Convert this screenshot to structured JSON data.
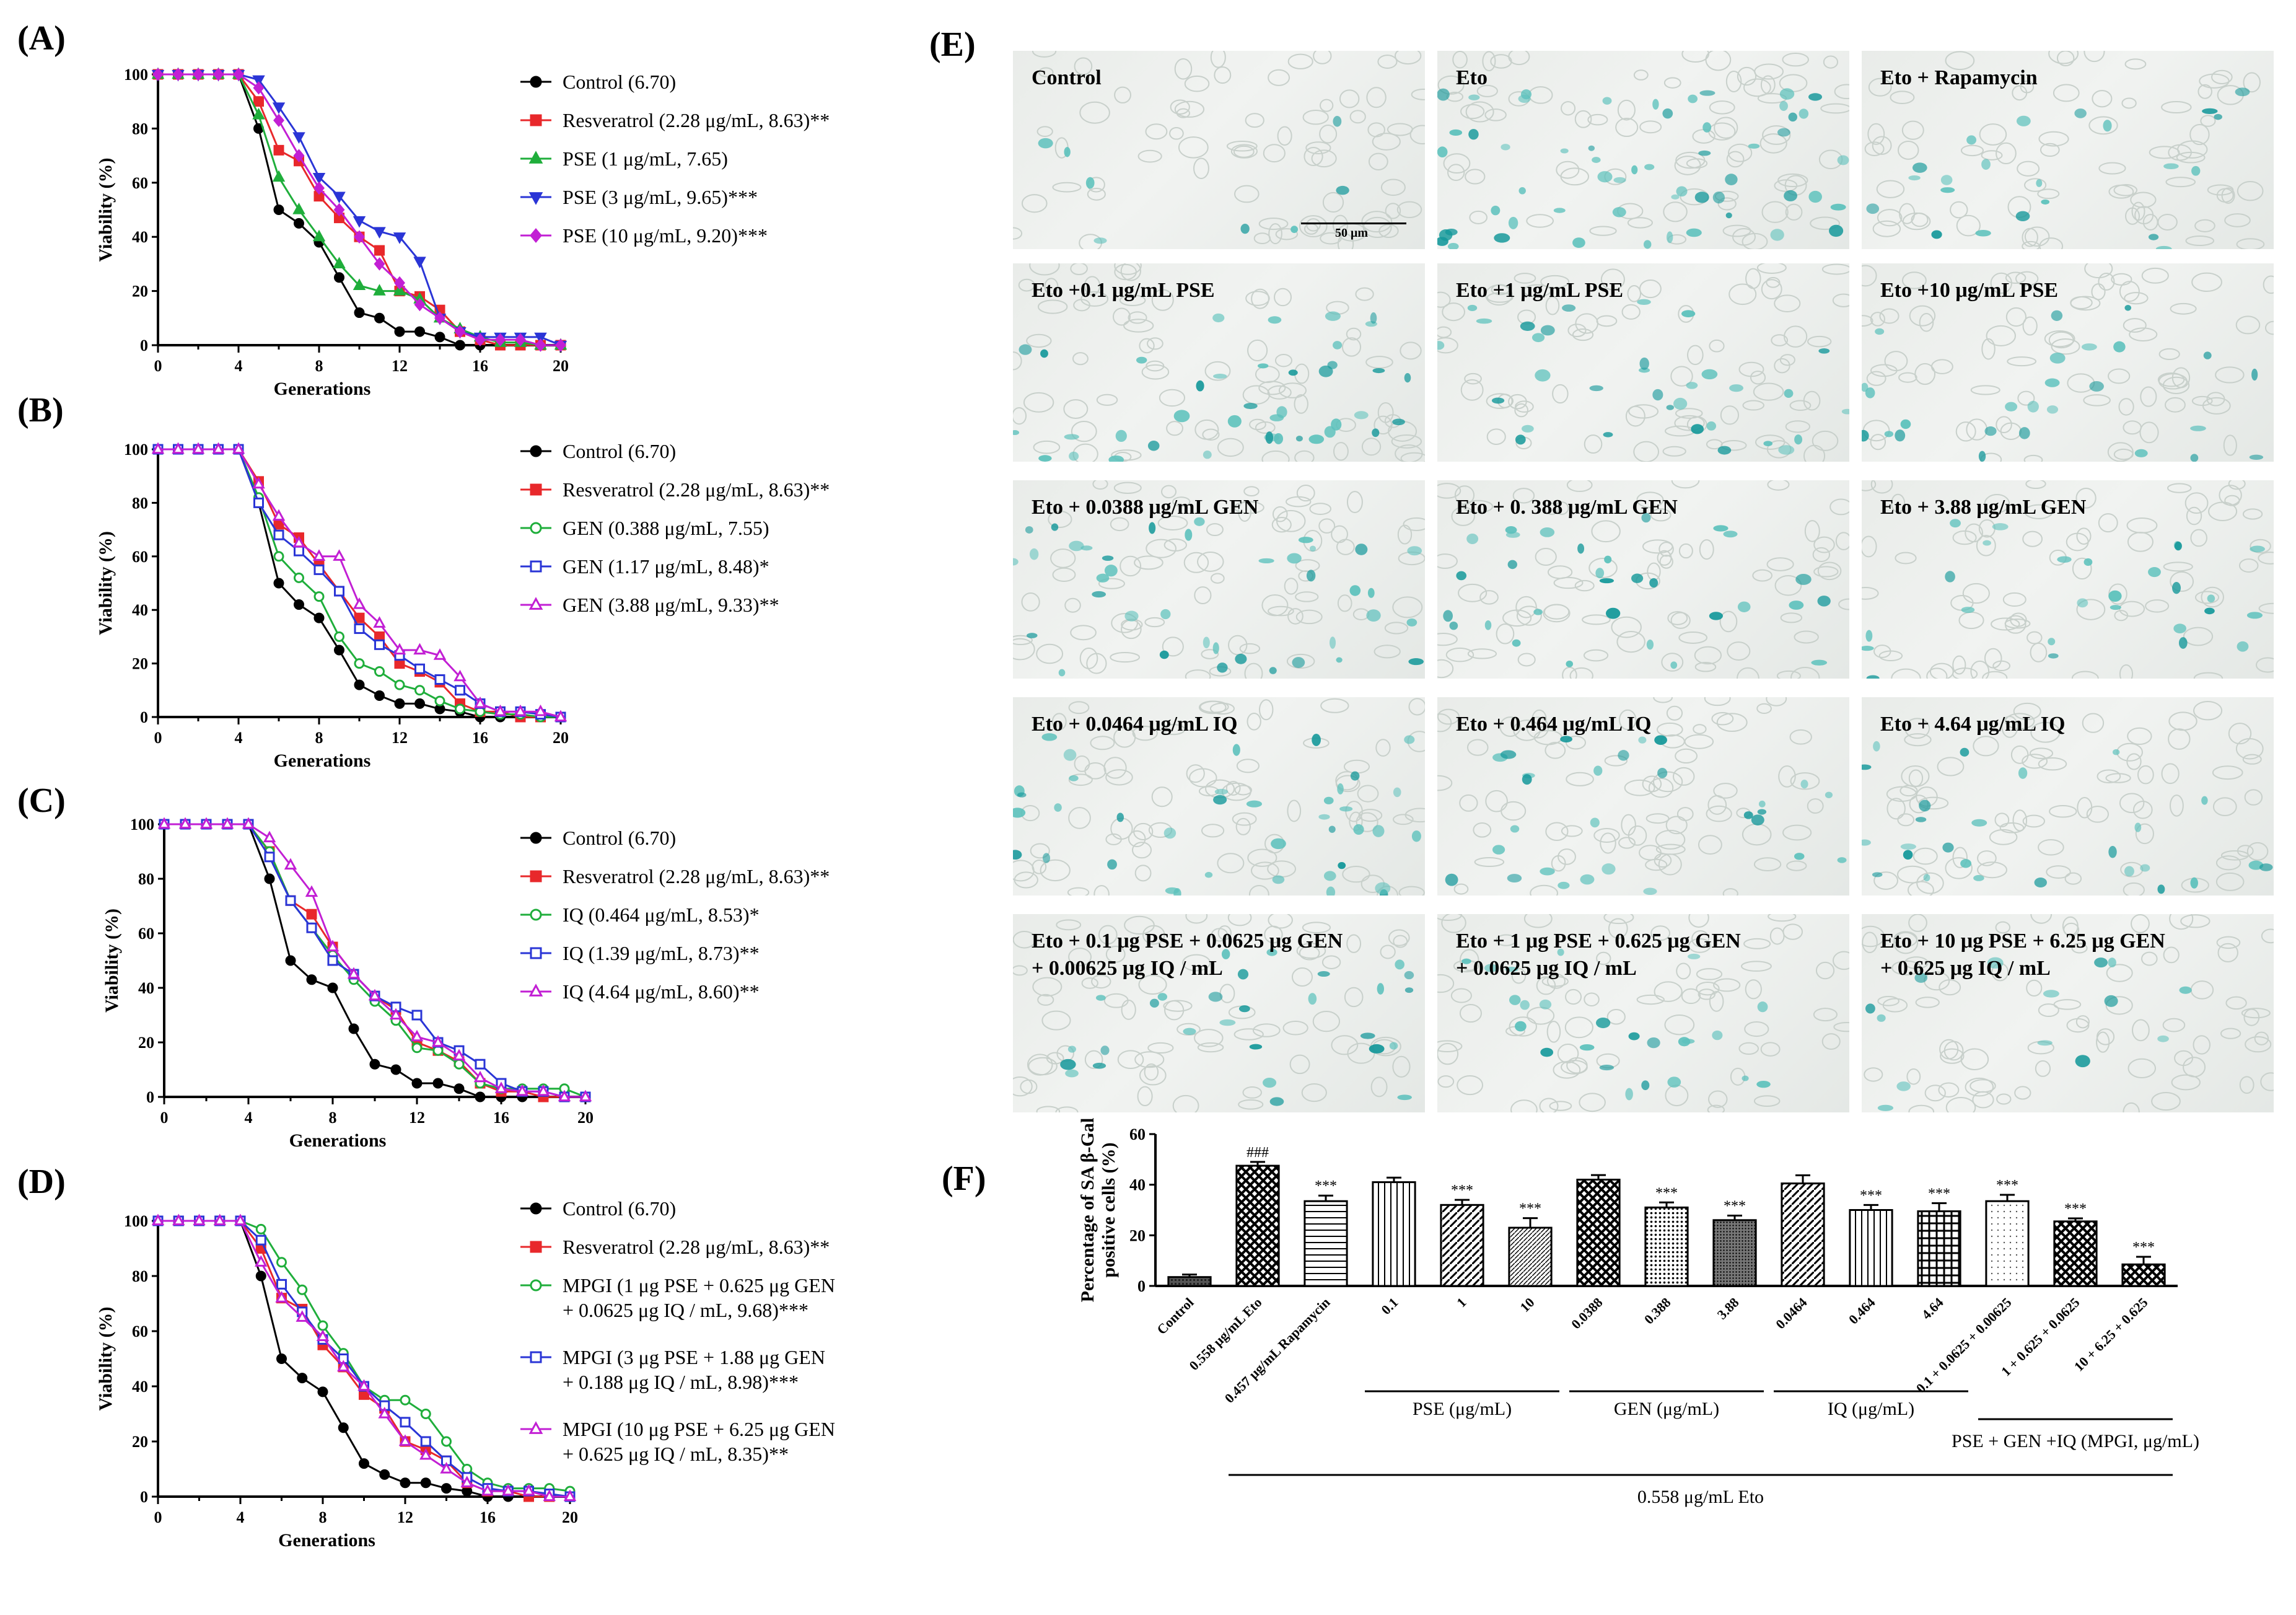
{
  "panels": {
    "A": {
      "label": "(A)",
      "ylabel": "Viability (%)",
      "xlabel": "Generations",
      "xticks": [
        "0",
        "4",
        "8",
        "12",
        "16",
        "20"
      ],
      "yticks": [
        "0",
        "20",
        "40",
        "60",
        "80",
        "100"
      ],
      "xmax": 20,
      "series": [
        {
          "name": "Control (6.70)",
          "color": "#000000",
          "marker": "circle-filled",
          "values": [
            100,
            100,
            100,
            100,
            100,
            80,
            50,
            45,
            38,
            25,
            12,
            10,
            5,
            5,
            3,
            0,
            0,
            0,
            0,
            0,
            0
          ]
        },
        {
          "name": "Resveratrol (2.28 μg/mL, 8.63)**",
          "color": "#e8282b",
          "marker": "square-filled",
          "values": [
            100,
            100,
            100,
            100,
            100,
            90,
            72,
            68,
            55,
            47,
            40,
            35,
            20,
            18,
            13,
            5,
            2,
            0,
            0,
            0,
            0
          ]
        },
        {
          "name": "PSE (1 μg/mL, 7.65)",
          "color": "#1fae3b",
          "marker": "triangle-up-filled",
          "values": [
            100,
            100,
            100,
            100,
            100,
            85,
            62,
            50,
            40,
            30,
            22,
            20,
            20,
            17,
            10,
            6,
            3,
            1,
            1,
            0,
            0
          ]
        },
        {
          "name": "PSE (3 μg/mL, 9.65)***",
          "color": "#2a35d6",
          "marker": "triangle-down-filled",
          "values": [
            100,
            100,
            100,
            100,
            100,
            98,
            88,
            77,
            62,
            55,
            46,
            42,
            40,
            31,
            10,
            5,
            3,
            3,
            3,
            3,
            0
          ]
        },
        {
          "name": "PSE (10 μg/mL, 9.20)***",
          "color": "#c21fd4",
          "marker": "diamond-filled",
          "values": [
            100,
            100,
            100,
            100,
            100,
            95,
            83,
            70,
            58,
            50,
            40,
            30,
            23,
            15,
            10,
            5,
            2,
            2,
            2,
            0,
            0
          ]
        }
      ]
    },
    "B": {
      "label": "(B)",
      "ylabel": "Viability (%)",
      "xlabel": "Generations",
      "xticks": [
        "0",
        "4",
        "8",
        "12",
        "16",
        "20"
      ],
      "yticks": [
        "0",
        "20",
        "40",
        "60",
        "80",
        "100"
      ],
      "xmax": 20,
      "series": [
        {
          "name": "Control (6.70)",
          "color": "#000000",
          "marker": "circle-filled",
          "values": [
            100,
            100,
            100,
            100,
            100,
            80,
            50,
            42,
            37,
            25,
            12,
            8,
            5,
            5,
            3,
            2,
            0,
            0,
            0,
            0,
            0
          ]
        },
        {
          "name": "Resveratrol (2.28 μg/mL, 8.63)**",
          "color": "#e8282b",
          "marker": "square-filled",
          "values": [
            100,
            100,
            100,
            100,
            100,
            88,
            72,
            67,
            57,
            47,
            37,
            30,
            20,
            17,
            13,
            5,
            2,
            2,
            0,
            0,
            0
          ]
        },
        {
          "name": "GEN (0.388 μg/mL, 7.55)",
          "color": "#1fae3b",
          "marker": "circle-open",
          "values": [
            100,
            100,
            100,
            100,
            100,
            82,
            60,
            52,
            45,
            30,
            20,
            17,
            12,
            10,
            6,
            3,
            2,
            1,
            1,
            0,
            0
          ]
        },
        {
          "name": "GEN (1.17 μg/mL, 8.48)*",
          "color": "#2a35d6",
          "marker": "square-open",
          "values": [
            100,
            100,
            100,
            100,
            100,
            80,
            68,
            62,
            55,
            47,
            33,
            27,
            23,
            18,
            14,
            10,
            5,
            2,
            2,
            1,
            0
          ]
        },
        {
          "name": "GEN (3.88 μg/mL, 9.33)**",
          "color": "#c21fd4",
          "marker": "triangle-up-open",
          "values": [
            100,
            100,
            100,
            100,
            100,
            87,
            75,
            65,
            60,
            60,
            42,
            35,
            25,
            25,
            23,
            15,
            5,
            2,
            2,
            2,
            0
          ]
        }
      ]
    },
    "C": {
      "label": "(C)",
      "ylabel": "Viability (%)",
      "xlabel": "Generations",
      "xticks": [
        "0",
        "4",
        "8",
        "12",
        "16",
        "20"
      ],
      "yticks": [
        "0",
        "20",
        "40",
        "60",
        "80",
        "100"
      ],
      "xmax": 20,
      "series": [
        {
          "name": "Control (6.70)",
          "color": "#000000",
          "marker": "circle-filled",
          "values": [
            100,
            100,
            100,
            100,
            100,
            80,
            50,
            43,
            40,
            25,
            12,
            10,
            5,
            5,
            3,
            0,
            0,
            0,
            0,
            0,
            0
          ]
        },
        {
          "name": "Resveratrol (2.28 μg/mL, 8.63)**",
          "color": "#e8282b",
          "marker": "square-filled",
          "values": [
            100,
            100,
            100,
            100,
            100,
            90,
            72,
            67,
            55,
            45,
            37,
            32,
            20,
            17,
            13,
            5,
            2,
            2,
            0,
            0,
            0
          ]
        },
        {
          "name": "IQ (0.464 μg/mL, 8.53)*",
          "color": "#1fae3b",
          "marker": "circle-open",
          "values": [
            100,
            100,
            100,
            100,
            100,
            90,
            72,
            62,
            52,
            43,
            35,
            28,
            18,
            17,
            12,
            5,
            3,
            3,
            3,
            3,
            0
          ]
        },
        {
          "name": "IQ (1.39 μg/mL, 8.73)**",
          "color": "#2a35d6",
          "marker": "square-open",
          "values": [
            100,
            100,
            100,
            100,
            100,
            88,
            72,
            62,
            50,
            45,
            37,
            33,
            30,
            20,
            17,
            12,
            5,
            2,
            2,
            0,
            0
          ]
        },
        {
          "name": "IQ (4.64 μg/mL, 8.60)**",
          "color": "#c21fd4",
          "marker": "triangle-up-open",
          "values": [
            100,
            100,
            100,
            100,
            100,
            95,
            85,
            75,
            55,
            45,
            37,
            30,
            22,
            20,
            15,
            7,
            3,
            2,
            2,
            0,
            0
          ]
        }
      ]
    },
    "D": {
      "label": "(D)",
      "ylabel": "Viability (%)",
      "xlabel": "Generations",
      "xticks": [
        "0",
        "4",
        "8",
        "12",
        "16",
        "20"
      ],
      "yticks": [
        "0",
        "20",
        "40",
        "60",
        "80",
        "100"
      ],
      "xmax": 20,
      "series": [
        {
          "name": "Control (6.70)",
          "color": "#000000",
          "marker": "circle-filled",
          "values": [
            100,
            100,
            100,
            100,
            100,
            80,
            50,
            43,
            38,
            25,
            12,
            8,
            5,
            5,
            3,
            2,
            0,
            0,
            0,
            0,
            0
          ]
        },
        {
          "name": "Resveratrol (2.28 μg/mL, 8.63)**",
          "color": "#e8282b",
          "marker": "square-filled",
          "values": [
            100,
            100,
            100,
            100,
            100,
            90,
            72,
            68,
            55,
            47,
            37,
            32,
            20,
            17,
            13,
            5,
            2,
            2,
            0,
            0,
            0
          ]
        },
        {
          "name": "MPGI (1 μg PSE + 0.625 μg GEN|+ 0.0625 μg IQ / mL, 9.68)***",
          "color": "#1fae3b",
          "marker": "circle-open",
          "values": [
            100,
            100,
            100,
            100,
            100,
            97,
            85,
            75,
            62,
            52,
            40,
            35,
            35,
            30,
            20,
            10,
            5,
            3,
            3,
            3,
            2
          ]
        },
        {
          "name": "MPGI (3 μg PSE + 1.88 μg GEN|+ 0.188 μg IQ / mL, 8.98)***",
          "color": "#2a35d6",
          "marker": "square-open",
          "values": [
            100,
            100,
            100,
            100,
            100,
            93,
            77,
            67,
            57,
            50,
            40,
            33,
            27,
            20,
            13,
            7,
            3,
            2,
            2,
            1,
            0
          ]
        },
        {
          "name": "MPGI (10 μg PSE + 6.25 μg GEN|+ 0.625 μg IQ / mL, 8.35)**",
          "color": "#c21fd4",
          "marker": "triangle-up-open",
          "values": [
            100,
            100,
            100,
            100,
            100,
            85,
            72,
            65,
            58,
            47,
            40,
            30,
            20,
            15,
            10,
            5,
            2,
            2,
            2,
            0,
            0
          ]
        }
      ]
    }
  },
  "micrographs": {
    "label": "(E)",
    "scale_bar": "50 μm",
    "tiles": [
      {
        "label": "Control",
        "density": 8
      },
      {
        "label": "Eto",
        "density": 55
      },
      {
        "label": "Eto + Rapamycin",
        "density": 22
      },
      {
        "label": "Eto +0.1 μg/mL PSE",
        "density": 40
      },
      {
        "label": "Eto +1 μg/mL PSE",
        "density": 32
      },
      {
        "label": "Eto +10 μg/mL PSE",
        "density": 26
      },
      {
        "label": "Eto + 0.0388 μg/mL GEN",
        "density": 38
      },
      {
        "label": "Eto + 0. 388 μg/mL GEN",
        "density": 30
      },
      {
        "label": "Eto + 3.88 μg/mL GEN",
        "density": 26
      },
      {
        "label": "Eto + 0.0464 μg/mL IQ",
        "density": 38
      },
      {
        "label": "Eto + 0.464 μg/mL IQ",
        "density": 28
      },
      {
        "label": "Eto + 4.64 μg/mL IQ",
        "density": 26
      },
      {
        "label": "Eto +  0.1 μg PSE  + 0.0625 μg GEN|+ 0.00625 μg IQ / mL",
        "density": 28
      },
      {
        "label": "Eto + 1 μg PSE + 0.625 μg GEN|+ 0.0625 μg IQ / mL",
        "density": 24
      },
      {
        "label": "Eto + 10 μg PSE + 6.25 μg GEN|+ 0.625 μg IQ / mL",
        "density": 14
      }
    ]
  },
  "chart_data": {
    "type": "bar",
    "label": "(F)",
    "ylabel": "Percentage of SA β-Gal|positive cells (%)",
    "ylim": [
      0,
      60
    ],
    "yticks": [
      "0",
      "20",
      "40",
      "60"
    ],
    "categories": [
      "Control",
      "0.558 μg/mL Eto",
      "0.457 μg/mL Rapamycin",
      "0.1",
      "1",
      "10",
      "0.0388",
      "0.388",
      "3.88",
      "0.0464",
      "0.464",
      "4.64",
      "0.1 + 0.0625 + 0.00625",
      "1 + 0.625 + 0.0625",
      "10 + 6.25 + 0.625"
    ],
    "values": [
      3.5,
      47.5,
      33.5,
      41.0,
      32.0,
      23.0,
      42.0,
      31.0,
      26.0,
      40.5,
      30.0,
      29.5,
      33.5,
      25.5,
      8.5
    ],
    "errors": [
      1.0,
      1.5,
      2.2,
      1.8,
      2.0,
      3.8,
      1.8,
      2.0,
      1.8,
      3.2,
      2.0,
      3.2,
      2.5,
      1.2,
      3.0
    ],
    "patterns": [
      "dense",
      "checker",
      "hlines",
      "vlines",
      "diag",
      "finediag",
      "checker",
      "dots",
      "finedots",
      "diag",
      "vlines",
      "grid",
      "sparsedots",
      "checker",
      "checker"
    ],
    "significance": [
      "",
      "###",
      "***",
      "",
      "***",
      "***",
      "",
      "***",
      "***",
      "",
      "***",
      "***",
      "***",
      "***",
      "***"
    ],
    "groups": [
      {
        "name": "PSE (μg/mL)",
        "from": 3,
        "to": 5
      },
      {
        "name": "GEN (μg/mL)",
        "from": 6,
        "to": 8
      },
      {
        "name": "IQ (μg/mL)",
        "from": 9,
        "to": 11
      },
      {
        "name": "PSE + GEN +IQ (MPGI, μg/mL)",
        "from": 12,
        "to": 14
      },
      {
        "name": "0.558 μg/mL Eto",
        "from": 1,
        "to": 14
      }
    ]
  }
}
